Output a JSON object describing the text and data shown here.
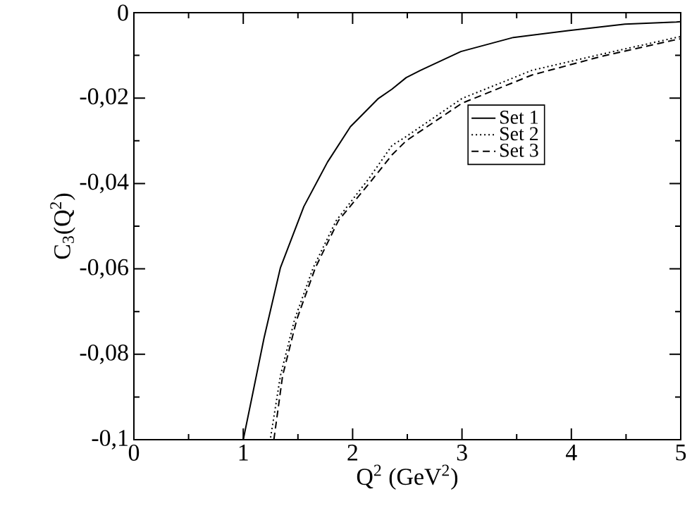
{
  "chart_data": {
    "type": "line",
    "xlabel": "Q$^{2}$ (GeV$^{2}$)",
    "ylabel": "C$_{3}$(Q$^{2}$)",
    "xlim": [
      0,
      5
    ],
    "ylim": [
      -0.1,
      0
    ],
    "xticks": [
      0,
      1,
      2,
      3,
      4,
      5
    ],
    "yticks": [
      {
        "value": -0.1,
        "label": "-0,1"
      },
      {
        "value": -0.08,
        "label": "-0,08"
      },
      {
        "value": -0.06,
        "label": "-0,06"
      },
      {
        "value": -0.04,
        "label": "-0,04"
      },
      {
        "value": -0.02,
        "label": "-0,02"
      },
      0
    ],
    "legend": "top right",
    "grid": false,
    "marker": "none",
    "series": [
      {
        "name": "Set 1",
        "color": "#000000",
        "line_style": "solid",
        "x": [
          1.0,
          1.085,
          1.19,
          1.34,
          1.554,
          1.77,
          1.98,
          2.235,
          2.36,
          2.49,
          2.62,
          2.99,
          3.47,
          3.97,
          4.49,
          4.96,
          5.0
        ],
        "values": [
          -0.1,
          -0.0894,
          -0.0762,
          -0.0597,
          -0.0454,
          -0.035,
          -0.0267,
          -0.0201,
          -0.0179,
          -0.0152,
          -0.0135,
          -0.0091,
          -0.0058,
          -0.0042,
          -0.0027,
          -0.0022,
          -0.0021
        ]
      },
      {
        "name": "Set 2",
        "color": "#000000",
        "line_style": "dotted",
        "x": [
          1.25,
          1.34,
          1.47,
          1.64,
          1.85,
          2.15,
          2.36,
          2.49,
          3.0,
          3.64,
          4.28,
          4.96,
          5.0
        ],
        "values": [
          -0.0995,
          -0.085,
          -0.0718,
          -0.0597,
          -0.0487,
          -0.0388,
          -0.0311,
          -0.029,
          -0.0201,
          -0.0135,
          -0.0097,
          -0.0058,
          -0.0056
        ]
      },
      {
        "name": "Set 3",
        "color": "#000000",
        "line_style": "dashed",
        "x": [
          1.28,
          1.36,
          1.49,
          1.66,
          1.87,
          2.17,
          2.36,
          2.49,
          3.0,
          3.64,
          4.28,
          4.96,
          5.0
        ],
        "values": [
          -0.1,
          -0.085,
          -0.0718,
          -0.0597,
          -0.0487,
          -0.0394,
          -0.0333,
          -0.03,
          -0.0212,
          -0.0146,
          -0.0102,
          -0.0063,
          -0.0061
        ]
      }
    ]
  }
}
